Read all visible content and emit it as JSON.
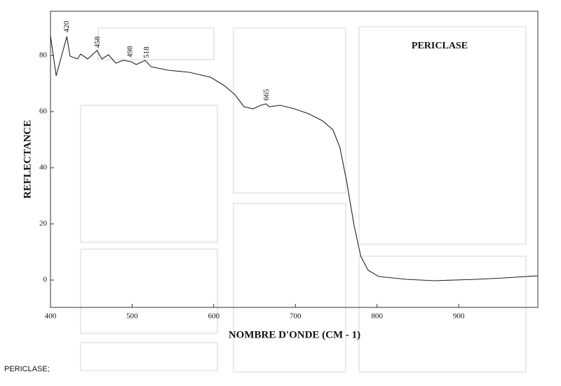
{
  "chart_data": {
    "type": "line",
    "title": "PERICLASE",
    "caption": "PERICLASE;",
    "x_label": "NOMBRE D'ONDE (CM - 1)",
    "y_label": "REFLECTANCE",
    "xlim": [
      400,
      997
    ],
    "ylim": [
      -9.75,
      95.75
    ],
    "xticks": [
      400,
      500,
      600,
      700,
      800,
      900
    ],
    "yticks": [
      0,
      20,
      40,
      60,
      80
    ],
    "peak_labels": [
      420,
      458,
      498,
      518,
      665
    ],
    "series": [
      {
        "name": "PERICLASE",
        "color": "#222222",
        "x": [
          400,
          407,
          420,
          424,
          433,
          437,
          445.5,
          457,
          463,
          471,
          480,
          489,
          499,
          505,
          516,
          523,
          544,
          570,
          596,
          613,
          626,
          637,
          648,
          657.5,
          664,
          668,
          681.5,
          698.7,
          716,
          733,
          746,
          754.5,
          763,
          771.7,
          780,
          789,
          802,
          836,
          870,
          922,
          956,
          996.5
        ],
        "values": [
          87,
          72.75,
          86.75,
          79.75,
          78.75,
          80.5,
          78.75,
          81.75,
          78.75,
          80.25,
          77.25,
          78.25,
          77.75,
          76.75,
          78.25,
          76,
          74.75,
          74,
          72.25,
          69.25,
          66,
          61.75,
          61,
          62.25,
          62.75,
          61.75,
          62.25,
          61,
          59.25,
          56.75,
          53.5,
          47.25,
          34.75,
          19.75,
          8.5,
          3.5,
          1.25,
          0.25,
          -0.25,
          0.25,
          0.75,
          1.5
        ]
      }
    ]
  }
}
